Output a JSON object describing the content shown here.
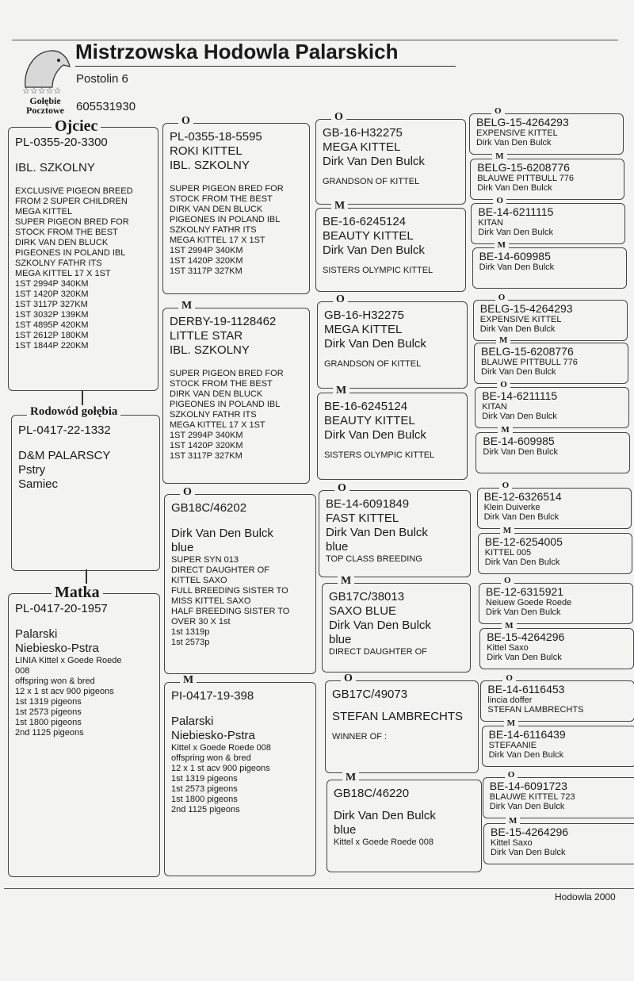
{
  "header": {
    "title": "Mistrzowska Hodowla Palarskich",
    "address": "Postolin  6",
    "phone": "605531930",
    "logo_lines": [
      "Gołębie",
      "Pocztowe"
    ]
  },
  "boxes": [
    {
      "heading": "Ojciec",
      "lines": [
        "PL-0355-20-3300",
        "IBL. SZKOLNY",
        "EXCLUSIVE PIGEON BREED",
        "FROM 2 SUPER CHILDREN",
        "MEGA KITTEL",
        "SUPER PIGEON BRED FOR",
        "STOCK FROM THE BEST",
        "DIRK VAN DEN BLUCK",
        "PIGEONES IN POLAND IBL",
        "SZKOLNY FATHR ITS",
        "MEGA KITTEL 17 X 1ST",
        "1ST 2994P 340KM",
        "1ST 1420P 320KM",
        "1ST 3117P 327KM",
        "1ST 3032P 139KM",
        "1ST 4895P 420KM",
        "1ST 2612P 180KM",
        "1ST 1844P 220KM"
      ]
    },
    {
      "heading": "Rodowód gołębia",
      "lines": [
        "PL-0417-22-1332",
        "D&M PALARSCY",
        "Pstry",
        "Samiec"
      ]
    },
    {
      "heading": "Matka",
      "lines": [
        "PL-0417-20-1957",
        "Palarski",
        "Niebiesko-Pstra",
        "LINIA Kittel x Goede Roede",
        "008",
        "offspring won & bred",
        "12 x 1 st acv 900 pigeons",
        "1st  1319 pigeons",
        "1st 2573 pigeons",
        "1st 1800 pigeons",
        "2nd 1125 pigeons"
      ]
    },
    {
      "marker": "O",
      "lines": [
        "PL-0355-18-5595",
        "ROKI KITTEL",
        "IBL. SZKOLNY",
        "SUPER PIGEON BRED FOR",
        "STOCK FROM THE BEST",
        "DIRK VAN DEN BLUCK",
        "PIGEONES IN POLAND IBL",
        "SZKOLNY FATHR ITS",
        "MEGA KITTEL 17 X 1ST",
        "1ST 2994P 340KM",
        "1ST 1420P 320KM",
        "1ST 3117P 327KM"
      ]
    },
    {
      "marker": "M",
      "lines": [
        "DERBY-19-1128462",
        "LITTLE STAR",
        "IBL. SZKOLNY",
        "SUPER PIGEON BRED FOR",
        "STOCK FROM THE BEST",
        "DIRK VAN DEN BLUCK",
        "PIGEONES IN POLAND IBL",
        "SZKOLNY FATHR ITS",
        "MEGA KITTEL 17 X 1ST",
        "1ST 2994P 340KM",
        "1ST 1420P 320KM",
        "1ST 3117P 327KM"
      ]
    },
    {
      "marker": "O",
      "lines": [
        "GB18C/46202",
        "Dirk Van Den Bulck",
        "blue",
        "SUPER SYN 013",
        "DIRECT DAUGHTER OF",
        "KITTEL SAXO",
        "FULL BREEDING SISTER TO",
        "MISS KITTEL SAXO",
        "HALF BREEDING SISTER TO",
        "OVER 30 X 1st",
        "1st 1319p",
        "1st 2573p"
      ]
    },
    {
      "marker": "M",
      "lines": [
        "PI-0417-19-398",
        "Palarski",
        "Niebiesko-Pstra",
        "Kittel x Goede Roede 008",
        "offspring won & bred",
        "12 x 1 st acv 900 pigeons",
        "1st  1319 pigeons",
        "1st 2573 pigeons",
        "1st 1800 pigeons",
        "2nd 1125 pigeons"
      ]
    },
    {
      "marker": "O",
      "lines": [
        "GB-16-H32275",
        "MEGA KITTEL",
        "Dirk Van Den Bulck",
        "GRANDSON OF KITTEL"
      ]
    },
    {
      "marker": "M",
      "lines": [
        "BE-16-6245124",
        "BEAUTY KITTEL",
        "Dirk Van Den Bulck",
        "SISTERS OLYMPIC KITTEL"
      ]
    },
    {
      "marker": "O",
      "lines": [
        "GB-16-H32275",
        "MEGA KITTEL",
        "Dirk Van Den Bulck",
        "GRANDSON OF KITTEL"
      ]
    },
    {
      "marker": "M",
      "lines": [
        "BE-16-6245124",
        "BEAUTY KITTEL",
        "Dirk Van Den Bulck",
        "SISTERS OLYMPIC KITTEL"
      ]
    },
    {
      "marker": "O",
      "lines": [
        "BE-14-6091849",
        "FAST KITTEL",
        "Dirk Van Den Bulck",
        "blue",
        "TOP CLASS BREEDING"
      ]
    },
    {
      "marker": "M",
      "lines": [
        "GB17C/38013",
        "SAXO BLUE",
        "Dirk Van Den Bulck",
        "blue",
        "DIRECT DAUGHTER OF"
      ]
    },
    {
      "marker": "O",
      "lines": [
        "GB17C/49073",
        "STEFAN LAMBRECHTS",
        "WINNER OF :"
      ]
    },
    {
      "marker": "M",
      "lines": [
        "GB18C/46220",
        "Dirk Van Den Bulck",
        "blue",
        "Kittel x Goede Roede 008"
      ]
    },
    {
      "marker": "O",
      "lines": [
        "BELG-15-4264293",
        "EXPENSIVE KITTEL",
        "Dirk Van Den Bulck"
      ]
    },
    {
      "marker": "M",
      "lines": [
        "BELG-15-6208776",
        "BLAUWE PITTBULL 776",
        "Dirk Van Den Bulck"
      ]
    },
    {
      "marker": "O",
      "lines": [
        "BE-14-6211115",
        "KITAN",
        "Dirk Van Den Bulck"
      ]
    },
    {
      "marker": "M",
      "lines": [
        "BE-14-609985",
        "Dirk Van Den Bulck"
      ]
    },
    {
      "marker": "O",
      "lines": [
        "BELG-15-4264293",
        "EXPENSIVE KITTEL",
        "Dirk Van Den Bulck"
      ]
    },
    {
      "marker": "M",
      "lines": [
        "BELG-15-6208776",
        "BLAUWE PITTBULL 776",
        "Dirk Van Den Bulck"
      ]
    },
    {
      "marker": "O",
      "lines": [
        "BE-14-6211115",
        "KITAN",
        "Dirk Van Den Bulck"
      ]
    },
    {
      "marker": "M",
      "lines": [
        "BE-14-609985",
        "Dirk Van Den Bulck"
      ]
    },
    {
      "marker": "O",
      "lines": [
        "BE-12-6326514",
        "Klein Duiverke",
        "Dirk Van Den Bulck"
      ]
    },
    {
      "marker": "M",
      "lines": [
        "BE-12-6254005",
        "KITTEL 005",
        "Dirk Van Den Bulck"
      ]
    },
    {
      "marker": "O",
      "lines": [
        "BE-12-6315921",
        "Neiuew Goede Roede",
        "Dirk Van Den Bulck"
      ]
    },
    {
      "marker": "M",
      "lines": [
        "BE-15-4264296",
        "Kittel Saxo",
        "Dirk Van Den Bulck"
      ]
    },
    {
      "marker": "O",
      "lines": [
        "BE-14-6116453",
        "lincia doffer",
        "STEFAN LAMBRECHTS"
      ]
    },
    {
      "marker": "M",
      "lines": [
        "BE-14-6116439",
        "STEFAANIE",
        "Dirk Van Den Bulck"
      ]
    },
    {
      "marker": "O",
      "lines": [
        "BE-14-6091723",
        "BLAUWE KITTEL 723",
        "Dirk Van Den Bulck"
      ]
    },
    {
      "marker": "M",
      "lines": [
        "BE-15-4264296",
        "Kittel Saxo",
        "Dirk Van Den Bulck"
      ]
    }
  ],
  "footer": "Hodowla 2000"
}
